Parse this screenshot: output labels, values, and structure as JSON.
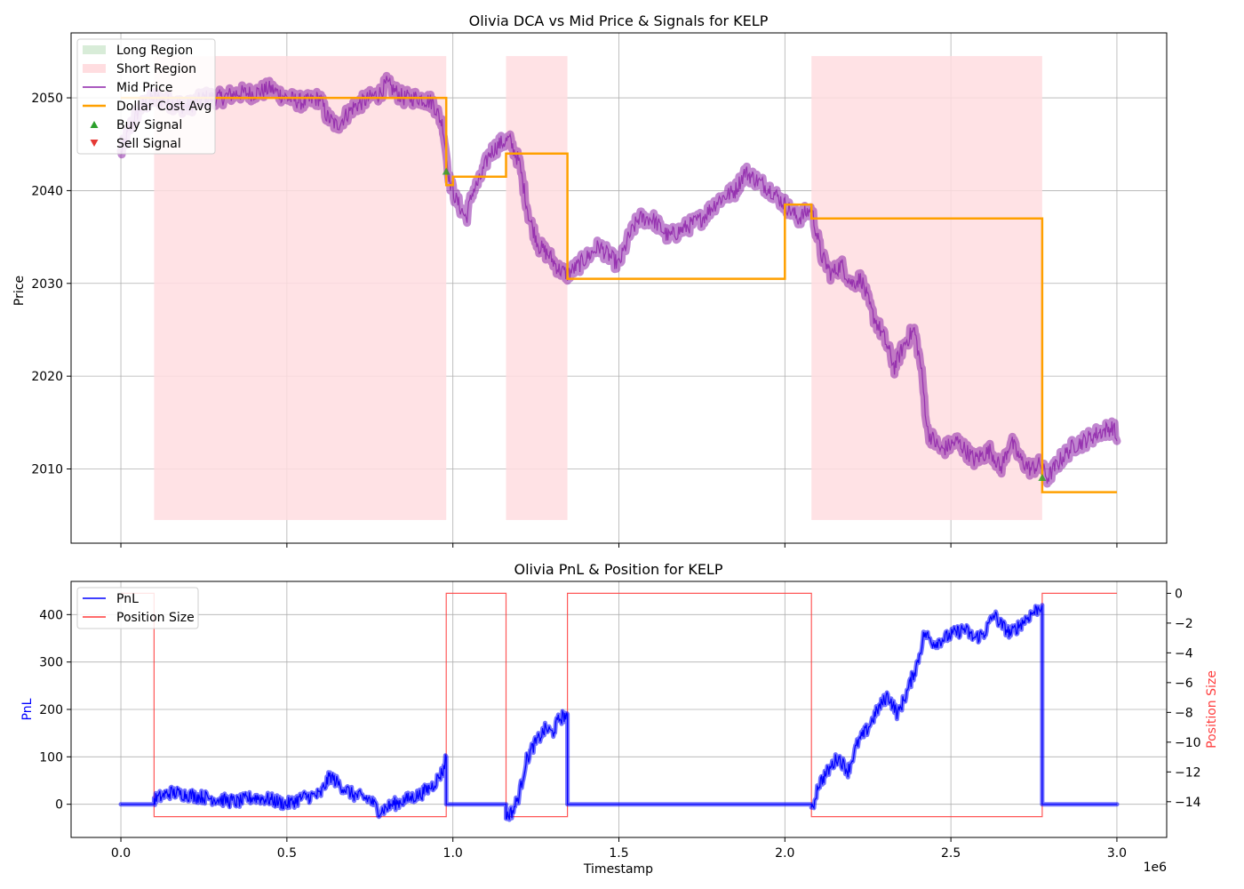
{
  "colors": {
    "mid_price": "#8e24aa",
    "dca": "#ffa000",
    "short_region": "#ffdde0",
    "long_region": "#d8ecd8",
    "buy": "#2ca02c",
    "sell": "#e53935",
    "pnl": "#0000ff",
    "position": "#ff3b3b",
    "grid": "#b0b0b0"
  },
  "chart_data": [
    {
      "type": "line",
      "title": "Olivia DCA vs Mid Price & Signals for KELP",
      "xlabel": "",
      "ylabel": "Price",
      "xlim": [
        -150000,
        3150000
      ],
      "ylim": [
        2002,
        2057
      ],
      "x_ticks": [
        0,
        500000,
        1000000,
        1500000,
        2000000,
        2500000,
        3000000
      ],
      "y_ticks": [
        2010,
        2020,
        2030,
        2040,
        2050
      ],
      "y_tick_labels": [
        "2010",
        "2020",
        "2030",
        "2040",
        "2050"
      ],
      "grid": true,
      "legend_position": "upper-left",
      "legend": [
        "Long Region",
        "Short Region",
        "Mid Price",
        "Dollar Cost Avg",
        "Buy Signal",
        "Sell Signal"
      ],
      "short_regions": [
        [
          100000,
          980000
        ],
        [
          1160000,
          1345000
        ],
        [
          2080000,
          2775000
        ]
      ],
      "region_ylim": [
        2004.5,
        2054.5
      ],
      "series": [
        {
          "name": "Mid Price",
          "x": [
            0,
            30000,
            60000,
            100000,
            150000,
            200000,
            250000,
            300000,
            350000,
            400000,
            450000,
            500000,
            550000,
            600000,
            620000,
            650000,
            700000,
            750000,
            780000,
            800000,
            850000,
            900000,
            940000,
            970000,
            990000,
            1010000,
            1040000,
            1060000,
            1080000,
            1110000,
            1140000,
            1170000,
            1200000,
            1230000,
            1260000,
            1290000,
            1320000,
            1345000,
            1380000,
            1410000,
            1440000,
            1470000,
            1500000,
            1530000,
            1560000,
            1600000,
            1650000,
            1700000,
            1750000,
            1800000,
            1850000,
            1880000,
            1920000,
            1960000,
            2000000,
            2040000,
            2080000,
            2110000,
            2140000,
            2170000,
            2200000,
            2230000,
            2260000,
            2300000,
            2330000,
            2360000,
            2390000,
            2410000,
            2430000,
            2470000,
            2520000,
            2570000,
            2620000,
            2650000,
            2680000,
            2710000,
            2740000,
            2770000,
            2790000,
            2830000,
            2870000,
            2900000,
            2950000,
            2990000,
            3000000
          ],
          "y": [
            2044,
            2047,
            2049,
            2050,
            2049.5,
            2049,
            2050,
            2050,
            2050.5,
            2050.5,
            2051,
            2050,
            2049.5,
            2050,
            2048,
            2047,
            2049,
            2050,
            2050.5,
            2051.5,
            2050,
            2050,
            2049.5,
            2047,
            2041,
            2039,
            2037,
            2040,
            2041,
            2044,
            2045,
            2045.5,
            2043,
            2037,
            2034,
            2033,
            2031.5,
            2031,
            2032,
            2033,
            2034,
            2033,
            2032,
            2035,
            2037,
            2037,
            2035,
            2036,
            2037,
            2039,
            2040,
            2042,
            2041,
            2040,
            2038.5,
            2037,
            2038,
            2033,
            2031,
            2032,
            2030,
            2030.5,
            2027,
            2024,
            2021,
            2023.5,
            2025,
            2021,
            2014,
            2012,
            2013,
            2011,
            2012,
            2010,
            2013,
            2011,
            2010,
            2010.5,
            2009,
            2011,
            2012.5,
            2013,
            2014,
            2014.5,
            2013
          ]
        },
        {
          "name": "Dollar Cost Avg",
          "step": true,
          "x": [
            0,
            980000,
            980000,
            1000000,
            1000000,
            1160000,
            1160000,
            1345000,
            1345000,
            2000000,
            2000000,
            2080000,
            2080000,
            2775000,
            2775000,
            3000000
          ],
          "y": [
            2050,
            2050,
            2040.6,
            2040.6,
            2041.5,
            2041.5,
            2044,
            2044,
            2030.5,
            2030.5,
            2038.5,
            2038.5,
            2037,
            2037,
            2007.5,
            2007.5
          ]
        }
      ],
      "buy_signals": [
        {
          "x": 980000,
          "y": 2042
        },
        {
          "x": 2775000,
          "y": 2009
        }
      ],
      "sell_signals": []
    },
    {
      "type": "line",
      "title": "Olivia PnL & Position for KELP",
      "xlabel": "Timestamp",
      "ylabel": "PnL",
      "ylabel_right": "Position Size",
      "x_offset_label": "1e6",
      "xlim": [
        -150000,
        3150000
      ],
      "ylim": [
        -70,
        470
      ],
      "ylim_right": [
        -16.4,
        0.8
      ],
      "x_ticks": [
        0,
        500000,
        1000000,
        1500000,
        2000000,
        2500000,
        3000000
      ],
      "x_tick_labels": [
        "0.0",
        "0.5",
        "1.0",
        "1.5",
        "2.0",
        "2.5",
        "3.0"
      ],
      "y_ticks": [
        0,
        100,
        200,
        300,
        400
      ],
      "y_tick_labels": [
        "0",
        "100",
        "200",
        "300",
        "400"
      ],
      "y_ticks_right": [
        0,
        -2,
        -4,
        -6,
        -8,
        -10,
        -12,
        -14
      ],
      "y_tick_labels_right": [
        "0",
        "−2",
        "−4",
        "−6",
        "−8",
        "−10",
        "−12",
        "−14"
      ],
      "grid": true,
      "legend_position": "upper-left",
      "legend": [
        "PnL",
        "Position Size"
      ],
      "series": [
        {
          "name": "PnL",
          "axis": "left",
          "x": [
            0,
            100000,
            100000,
            150000,
            200000,
            250000,
            300000,
            350000,
            400000,
            450000,
            500000,
            550000,
            600000,
            630000,
            660000,
            700000,
            750000,
            780000,
            820000,
            860000,
            900000,
            940000,
            970000,
            980000,
            980000,
            1160000,
            1160000,
            1180000,
            1200000,
            1220000,
            1240000,
            1260000,
            1280000,
            1300000,
            1320000,
            1345000,
            1345000,
            2080000,
            2080000,
            2100000,
            2130000,
            2160000,
            2190000,
            2220000,
            2250000,
            2280000,
            2310000,
            2340000,
            2370000,
            2400000,
            2420000,
            2450000,
            2480000,
            2510000,
            2540000,
            2570000,
            2600000,
            2630000,
            2650000,
            2680000,
            2710000,
            2740000,
            2775000,
            2775000,
            3000000
          ],
          "y": [
            0,
            0,
            10,
            25,
            20,
            15,
            10,
            5,
            15,
            10,
            0,
            15,
            20,
            60,
            40,
            20,
            10,
            -15,
            0,
            10,
            20,
            40,
            70,
            100,
            0,
            0,
            -25,
            -15,
            20,
            90,
            120,
            140,
            160,
            150,
            180,
            190,
            0,
            0,
            -20,
            40,
            70,
            100,
            70,
            130,
            160,
            200,
            230,
            190,
            240,
            300,
            360,
            340,
            350,
            360,
            370,
            350,
            360,
            400,
            380,
            360,
            380,
            400,
            420,
            0,
            0
          ]
        },
        {
          "name": "Position Size",
          "axis": "right",
          "step": true,
          "x": [
            0,
            100000,
            100000,
            980000,
            980000,
            1160000,
            1160000,
            1345000,
            1345000,
            2080000,
            2080000,
            2775000,
            2775000,
            3000000
          ],
          "y": [
            0,
            0,
            -15,
            -15,
            0,
            0,
            -15,
            -15,
            0,
            0,
            -15,
            -15,
            0,
            0
          ]
        }
      ]
    }
  ]
}
